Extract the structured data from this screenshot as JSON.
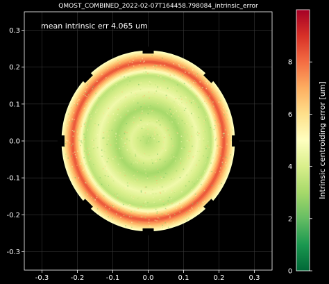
{
  "chart_data": {
    "type": "heatmap",
    "title": "QMOST_COMBINED_2022-02-07T164458.798084_intrinsic_error",
    "annotation": "mean intrinsic err 4.065 um",
    "xlim": [
      -0.35,
      0.35
    ],
    "ylim": [
      -0.35,
      0.35
    ],
    "x_ticks": [
      "-0.3",
      "-0.2",
      "-0.1",
      "0.0",
      "0.1",
      "0.2",
      "0.3"
    ],
    "y_ticks": [
      "0.3",
      "0.2",
      "0.1",
      "0.0",
      "-0.1",
      "-0.2",
      "-0.3"
    ],
    "x_tick_values": [
      -0.3,
      -0.2,
      -0.1,
      0.0,
      0.1,
      0.2,
      0.3
    ],
    "y_tick_values": [
      0.3,
      0.2,
      0.1,
      0.0,
      -0.1,
      -0.2,
      -0.3
    ],
    "grid": true,
    "colorbar": {
      "label": "Intrinsic centroiding error [um]",
      "colormap": "RdYlGn_r",
      "range": [
        0,
        10
      ],
      "ticks": [
        "0",
        "2",
        "4",
        "6",
        "8"
      ],
      "tick_values": [
        0,
        2,
        4,
        6,
        8
      ]
    },
    "field": {
      "shape": "circle",
      "radius": 0.245,
      "mean_value": 4.065,
      "notch_angles_deg": [
        45,
        90,
        135,
        180,
        225,
        270,
        315,
        0
      ],
      "rings": [
        {
          "radius": 0.0,
          "value": 3.2
        },
        {
          "radius": 0.05,
          "value": 4.3
        },
        {
          "radius": 0.09,
          "value": 3.0
        },
        {
          "radius": 0.14,
          "value": 4.6
        },
        {
          "radius": 0.18,
          "value": 3.4
        },
        {
          "radius": 0.215,
          "value": 8.5
        },
        {
          "radius": 0.245,
          "value": 5.0
        }
      ]
    },
    "background_color": "#000000"
  }
}
